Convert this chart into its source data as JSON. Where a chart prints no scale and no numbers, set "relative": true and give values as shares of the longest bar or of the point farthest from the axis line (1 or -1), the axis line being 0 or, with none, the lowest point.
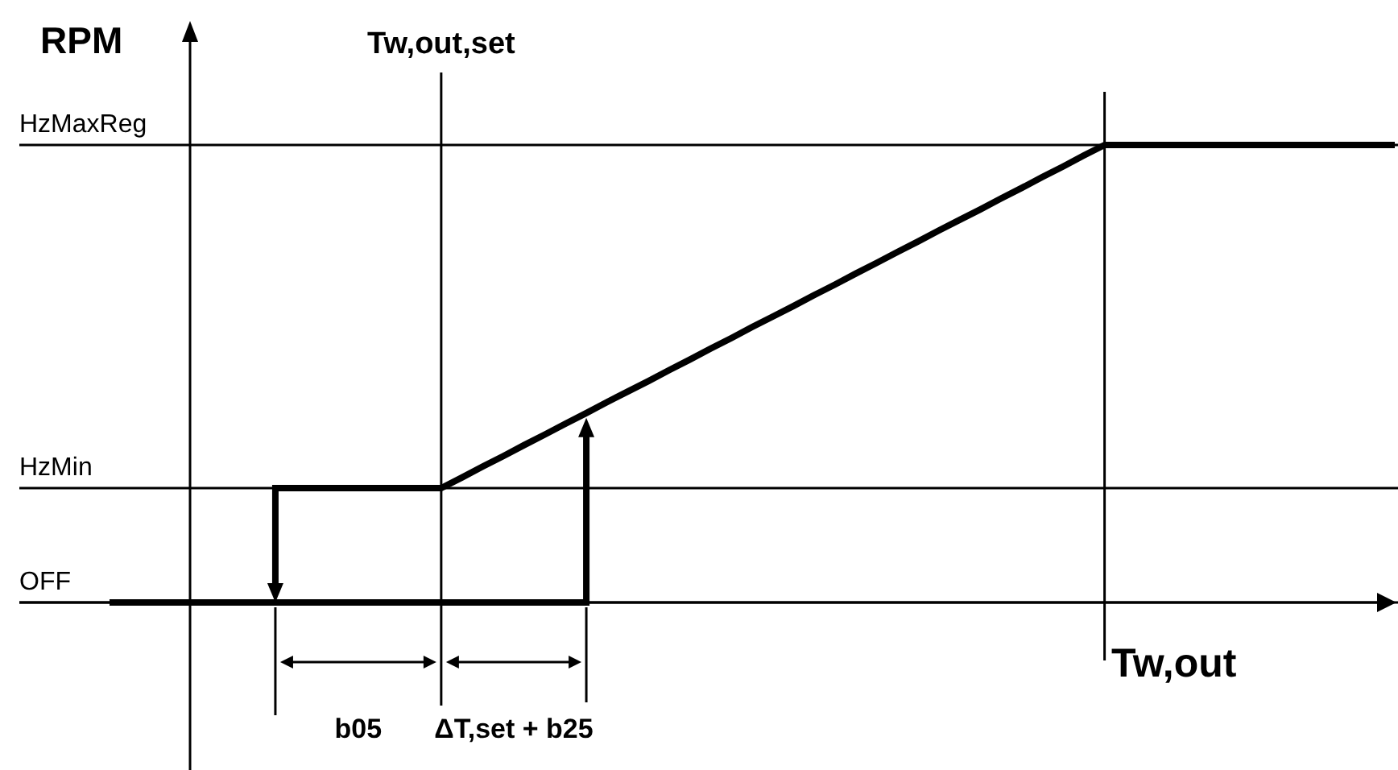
{
  "chart_data": {
    "type": "line",
    "relative": true,
    "xlabel": "Tw,out",
    "ylabel": "RPM",
    "categories": [
      null,
      null,
      null,
      null,
      null,
      null,
      null,
      null,
      null,
      null,
      null,
      null,
      null,
      null,
      null,
      null,
      null,
      null,
      null,
      null,
      null,
      null,
      null,
      null,
      null,
      null,
      null,
      null,
      null,
      null,
      null,
      null,
      null,
      null,
      null,
      null,
      null,
      null,
      null,
      null,
      null,
      null,
      null,
      null,
      null,
      null,
      null,
      null,
      null,
      null,
      null,
      null,
      null,
      null,
      null,
      null,
      null,
      null,
      null,
      null,
      null,
      null,
      null
    ],
    "series": [
      {
        "color": "#000000",
        "values": [
          0,
          0,
          0,
          0,
          0,
          0,
          0,
          0,
          0,
          0,
          0,
          0,
          0,
          0,
          0,
          0,
          0,
          0,
          0,
          0,
          0,
          0,
          0,
          0,
          null,
          null,
          null,
          null,
          null,
          null,
          null,
          null,
          null,
          null,
          null,
          null,
          null,
          null,
          null,
          null,
          null,
          null,
          null,
          null,
          null,
          null,
          null,
          null,
          null,
          null,
          null,
          null,
          null,
          null,
          null,
          null,
          null,
          null,
          null,
          null,
          null,
          null,
          null
        ]
      },
      {
        "color": "#000000",
        "values": [
          null,
          null,
          null,
          null,
          null,
          null,
          null,
          null,
          0.25,
          0.25,
          0.25,
          0.25,
          0.25,
          0.25,
          0.25,
          0.25,
          0.25,
          0.273,
          0.297,
          0.32,
          0.344,
          0.367,
          0.391,
          0.414,
          0.438,
          0.461,
          0.484,
          0.508,
          0.531,
          0.555,
          0.578,
          0.602,
          0.625,
          0.648,
          0.672,
          0.695,
          0.719,
          0.742,
          0.766,
          0.789,
          0.813,
          0.836,
          0.859,
          0.883,
          0.906,
          0.93,
          0.953,
          0.977,
          1,
          1,
          1,
          1,
          1,
          1,
          1,
          1,
          1,
          1,
          1,
          1,
          1,
          1,
          1
        ]
      }
    ],
    "ref_lines": [
      {
        "axis": "y",
        "value": 1,
        "label": "HzMaxReg"
      },
      {
        "axis": "y",
        "value": 0.25,
        "label": "HzMin"
      },
      {
        "axis": "y",
        "value": 0,
        "label": "OFF"
      }
    ],
    "annotations": [
      "Tw,out,set",
      "b05",
      "ΔT,set + b25"
    ]
  }
}
